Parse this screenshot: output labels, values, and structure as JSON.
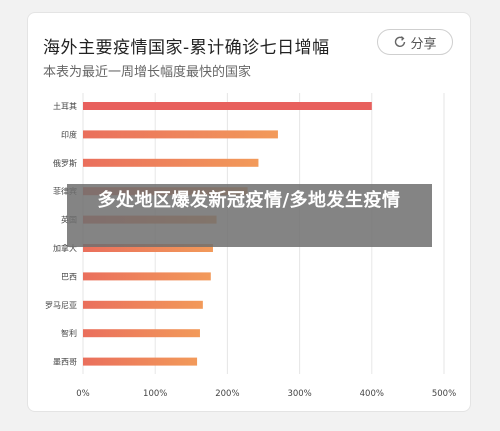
{
  "header": {
    "title": "海外主要疫情国家-累计确诊七日增幅",
    "subtitle": "本表为最近一周增长幅度最快的国家",
    "share_label": "分享",
    "share_icon": "refresh-share-icon"
  },
  "overlay": {
    "text": "多处地区爆发新冠疫情/多地发生疫情"
  },
  "colors": {
    "top_bar": "#e8605d",
    "bar_gradient_start": "#ea6f5c",
    "bar_gradient_end": "#f29a5a",
    "grid": "#e6e6e6",
    "tick_text": "#444444"
  },
  "chart_data": {
    "type": "bar",
    "orientation": "horizontal",
    "categories": [
      "土耳其",
      "印度",
      "俄罗斯",
      "菲律宾",
      "英国",
      "加拿大",
      "巴西",
      "罗马尼亚",
      "智利",
      "墨西哥"
    ],
    "values": [
      400,
      270,
      243,
      228,
      185,
      180,
      177,
      166,
      162,
      158
    ],
    "xlim": [
      0,
      500
    ],
    "xticks": [
      "0%",
      "100%",
      "200%",
      "300%",
      "400%",
      "500%"
    ],
    "grid": true,
    "title": "海外主要疫情国家-累计确诊七日增幅",
    "subtitle": "本表为最近一周增长幅度最快的国家"
  }
}
